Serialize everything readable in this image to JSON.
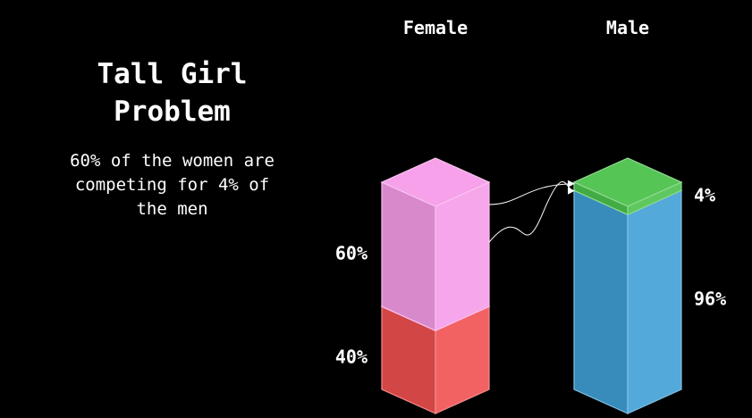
{
  "title": "Tall Girl\nProblem",
  "subtitle": "60% of the women are\ncompeting for 4% of\nthe men",
  "chart_data": {
    "type": "bar",
    "stacked": true,
    "categories": [
      "Female",
      "Male"
    ],
    "series": [
      {
        "values": [
          40,
          96
        ]
      },
      {
        "values": [
          60,
          4
        ]
      }
    ],
    "data_labels": [
      [
        "40%",
        "96%"
      ],
      [
        "60%",
        "4%"
      ]
    ],
    "colors": {
      "female_bottom": "#f05050",
      "female_top": "#f59ce8",
      "male_bottom": "#3f9fd6",
      "male_top": "#4cc24c"
    },
    "annotations": [
      "arrows from the 60% female segment to the 4% male segment"
    ]
  }
}
